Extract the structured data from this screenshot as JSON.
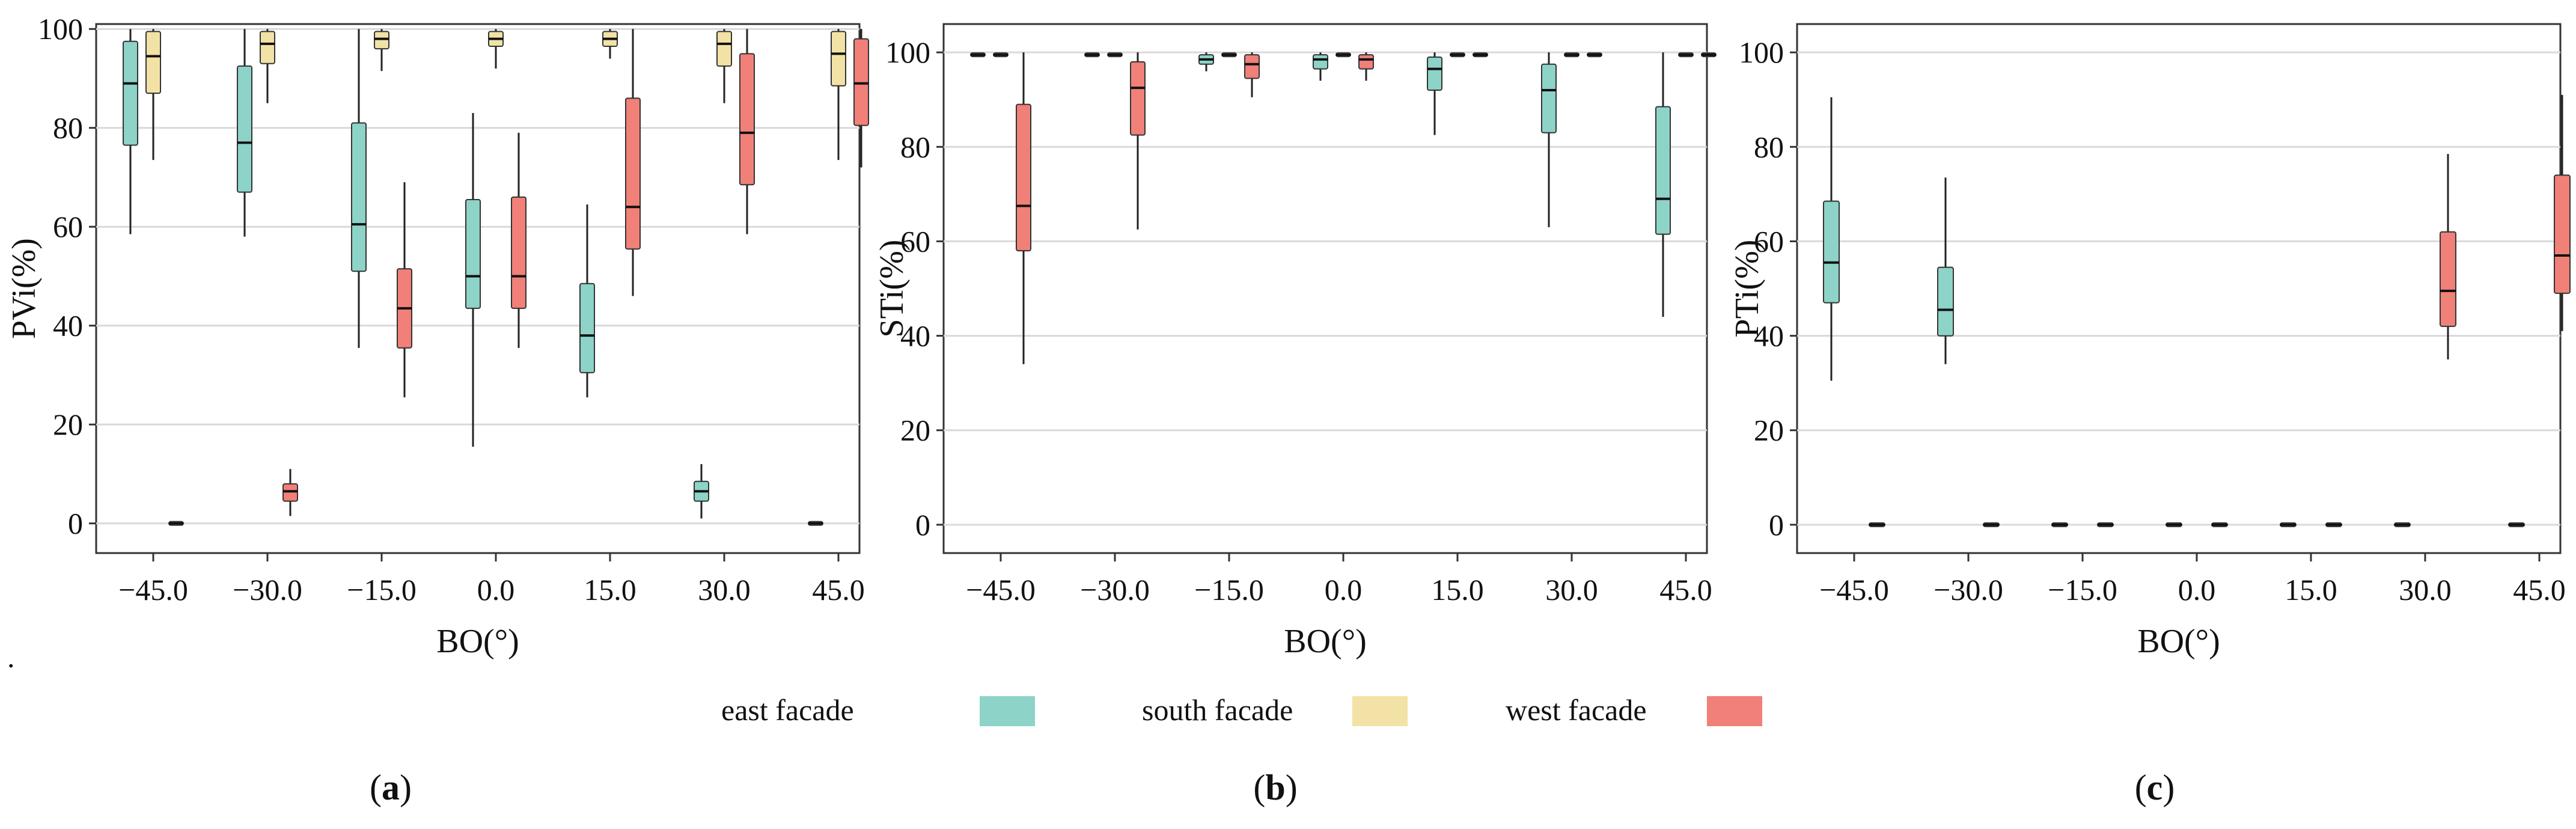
{
  "figure": {
    "legend": [
      {
        "label": "east facade",
        "color": "#8dd3c7"
      },
      {
        "label": "south facade",
        "color": "#f2e2a5"
      },
      {
        "label": "west facade",
        "color": "#f08078"
      }
    ],
    "stray_mark": "."
  },
  "chart_data": [
    {
      "type": "boxplot",
      "panel": "a",
      "panel_label": {
        "open": "(",
        "letter": "a",
        "close": ")"
      },
      "xlabel": "BO(°)",
      "ylabel": "PVi(%)",
      "categories": [
        "-45.0",
        "-30.0",
        "-15.0",
        "0.0",
        "15.0",
        "30.0",
        "45.0"
      ],
      "y_ticks": [
        "0",
        "20",
        "40",
        "60",
        "80",
        "100"
      ],
      "ylim": [
        -6,
        101
      ],
      "grid": "horizontal",
      "series": [
        {
          "name": "east facade",
          "boxes": [
            {
              "category": "-45.0",
              "min": 58.5,
              "q1": 76.5,
              "median": 89.0,
              "q3": 97.5,
              "max": 100
            },
            {
              "category": "-30.0",
              "min": 58.0,
              "q1": 67.0,
              "median": 77.0,
              "q3": 92.5,
              "max": 100
            },
            {
              "category": "-15.0",
              "min": 35.5,
              "q1": 51.0,
              "median": 60.5,
              "q3": 81.0,
              "max": 100
            },
            {
              "category": "0.0",
              "min": 15.5,
              "q1": 43.5,
              "median": 50.0,
              "q3": 65.5,
              "max": 83.0
            },
            {
              "category": "15.0",
              "min": 25.5,
              "q1": 30.5,
              "median": 38.0,
              "q3": 48.5,
              "max": 64.5
            },
            {
              "category": "30.0",
              "min": 1.0,
              "q1": 4.5,
              "median": 6.5,
              "q3": 8.5,
              "max": 12.0
            },
            {
              "category": "45.0",
              "min": 0,
              "q1": 0,
              "median": 0,
              "q3": 0,
              "max": 0
            }
          ]
        },
        {
          "name": "south facade",
          "boxes": [
            {
              "category": "-45.0",
              "min": 73.5,
              "q1": 87.0,
              "median": 94.5,
              "q3": 99.5,
              "max": 100
            },
            {
              "category": "-30.0",
              "min": 85.0,
              "q1": 93.0,
              "median": 97.0,
              "q3": 99.5,
              "max": 100
            },
            {
              "category": "-15.0",
              "min": 91.5,
              "q1": 96.0,
              "median": 98.0,
              "q3": 99.5,
              "max": 100
            },
            {
              "category": "0.0",
              "min": 92.0,
              "q1": 96.5,
              "median": 98.0,
              "q3": 99.5,
              "max": 100
            },
            {
              "category": "15.0",
              "min": 94.0,
              "q1": 96.5,
              "median": 98.0,
              "q3": 99.5,
              "max": 100
            },
            {
              "category": "30.0",
              "min": 85.0,
              "q1": 92.5,
              "median": 97.0,
              "q3": 99.5,
              "max": 100
            },
            {
              "category": "45.0",
              "min": 73.5,
              "q1": 88.5,
              "median": 95.0,
              "q3": 99.5,
              "max": 100
            }
          ]
        },
        {
          "name": "west facade",
          "boxes": [
            {
              "category": "-45.0",
              "min": 0,
              "q1": 0,
              "median": 0,
              "q3": 0,
              "max": 0
            },
            {
              "category": "-30.0",
              "min": 1.5,
              "q1": 4.5,
              "median": 6.5,
              "q3": 8.0,
              "max": 11.0
            },
            {
              "category": "-15.0",
              "min": 25.5,
              "q1": 35.5,
              "median": 43.5,
              "q3": 51.5,
              "max": 69.0
            },
            {
              "category": "0.0",
              "min": 35.5,
              "q1": 43.5,
              "median": 50.0,
              "q3": 66.0,
              "max": 79.0
            },
            {
              "category": "15.0",
              "min": 46.0,
              "q1": 55.5,
              "median": 64.0,
              "q3": 86.0,
              "max": 100
            },
            {
              "category": "30.0",
              "min": 58.5,
              "q1": 68.5,
              "median": 79.0,
              "q3": 95.0,
              "max": 100
            },
            {
              "category": "45.0",
              "min": 72.0,
              "q1": 80.5,
              "median": 89.0,
              "q3": 98.0,
              "max": 100
            }
          ]
        }
      ]
    },
    {
      "type": "boxplot",
      "panel": "b",
      "panel_label": {
        "open": "(",
        "letter": "b",
        "close": ")"
      },
      "xlabel": "BO(°)",
      "ylabel": "STi(%)",
      "categories": [
        "-45.0",
        "-30.0",
        "-15.0",
        "0.0",
        "15.0",
        "30.0",
        "45.0"
      ],
      "y_ticks": [
        "0",
        "20",
        "40",
        "60",
        "80",
        "100"
      ],
      "ylim": [
        -6,
        106
      ],
      "grid": "horizontal",
      "series": [
        {
          "name": "east facade",
          "boxes": [
            {
              "category": "-45.0",
              "min": 99.5,
              "q1": 99.5,
              "median": 99.5,
              "q3": 99.5,
              "max": 99.5
            },
            {
              "category": "-30.0",
              "min": 99.5,
              "q1": 99.5,
              "median": 99.5,
              "q3": 99.5,
              "max": 99.5
            },
            {
              "category": "-15.0",
              "min": 96.0,
              "q1": 97.5,
              "median": 98.5,
              "q3": 99.5,
              "max": 100
            },
            {
              "category": "0.0",
              "min": 94.0,
              "q1": 96.5,
              "median": 98.5,
              "q3": 99.5,
              "max": 100
            },
            {
              "category": "15.0",
              "min": 82.5,
              "q1": 92.0,
              "median": 96.5,
              "q3": 99.0,
              "max": 100
            },
            {
              "category": "30.0",
              "min": 63.0,
              "q1": 83.0,
              "median": 92.0,
              "q3": 97.5,
              "max": 100
            },
            {
              "category": "45.0",
              "min": 44.0,
              "q1": 61.5,
              "median": 69.0,
              "q3": 88.5,
              "max": 100
            }
          ]
        },
        {
          "name": "south facade",
          "boxes": [
            {
              "category": "-45.0",
              "min": 99.5,
              "q1": 99.5,
              "median": 99.5,
              "q3": 99.5,
              "max": 99.5
            },
            {
              "category": "-30.0",
              "min": 99.5,
              "q1": 99.5,
              "median": 99.5,
              "q3": 99.5,
              "max": 99.5
            },
            {
              "category": "-15.0",
              "min": 99.5,
              "q1": 99.5,
              "median": 99.5,
              "q3": 99.5,
              "max": 99.5
            },
            {
              "category": "0.0",
              "min": 99.5,
              "q1": 99.5,
              "median": 99.5,
              "q3": 99.5,
              "max": 99.5
            },
            {
              "category": "15.0",
              "min": 99.5,
              "q1": 99.5,
              "median": 99.5,
              "q3": 99.5,
              "max": 99.5
            },
            {
              "category": "30.0",
              "min": 99.5,
              "q1": 99.5,
              "median": 99.5,
              "q3": 99.5,
              "max": 99.5
            },
            {
              "category": "45.0",
              "min": 99.5,
              "q1": 99.5,
              "median": 99.5,
              "q3": 99.5,
              "max": 99.5
            }
          ]
        },
        {
          "name": "west facade",
          "boxes": [
            {
              "category": "-45.0",
              "min": 34.0,
              "q1": 58.0,
              "median": 67.5,
              "q3": 89.0,
              "max": 100
            },
            {
              "category": "-30.0",
              "min": 62.5,
              "q1": 82.5,
              "median": 92.5,
              "q3": 98.0,
              "max": 100
            },
            {
              "category": "-15.0",
              "min": 90.5,
              "q1": 94.5,
              "median": 97.5,
              "q3": 99.5,
              "max": 100
            },
            {
              "category": "0.0",
              "min": 94.0,
              "q1": 96.5,
              "median": 98.5,
              "q3": 99.5,
              "max": 100
            },
            {
              "category": "15.0",
              "min": 99.5,
              "q1": 99.5,
              "median": 99.5,
              "q3": 99.5,
              "max": 99.5
            },
            {
              "category": "30.0",
              "min": 99.5,
              "q1": 99.5,
              "median": 99.5,
              "q3": 99.5,
              "max": 99.5
            },
            {
              "category": "45.0",
              "min": 99.5,
              "q1": 99.5,
              "median": 99.5,
              "q3": 99.5,
              "max": 99.5
            }
          ]
        }
      ]
    },
    {
      "type": "boxplot",
      "panel": "c",
      "panel_label": {
        "open": "(",
        "letter": "c",
        "close": ")"
      },
      "xlabel": "BO(°)",
      "ylabel": "PTi(%)",
      "categories": [
        "-45.0",
        "-30.0",
        "-15.0",
        "0.0",
        "15.0",
        "30.0",
        "45.0"
      ],
      "y_ticks": [
        "0",
        "20",
        "40",
        "60",
        "80",
        "100"
      ],
      "ylim": [
        -6,
        106
      ],
      "grid": "horizontal",
      "series": [
        {
          "name": "east facade",
          "boxes": [
            {
              "category": "-45.0",
              "min": 30.5,
              "q1": 47.0,
              "median": 55.5,
              "q3": 68.5,
              "max": 90.5
            },
            {
              "category": "-30.0",
              "min": 34.0,
              "q1": 40.0,
              "median": 45.5,
              "q3": 54.5,
              "max": 73.5
            },
            {
              "category": "-15.0",
              "min": 0,
              "q1": 0,
              "median": 0,
              "q3": 0,
              "max": 0
            },
            {
              "category": "0.0",
              "min": 0,
              "q1": 0,
              "median": 0,
              "q3": 0,
              "max": 0
            },
            {
              "category": "15.0",
              "min": 0,
              "q1": 0,
              "median": 0,
              "q3": 0,
              "max": 0
            },
            {
              "category": "30.0",
              "min": 0,
              "q1": 0,
              "median": 0,
              "q3": 0,
              "max": 0
            },
            {
              "category": "45.0",
              "min": 0,
              "q1": 0,
              "median": 0,
              "q3": 0,
              "max": 0
            }
          ]
        },
        {
          "name": "west facade",
          "boxes": [
            {
              "category": "-45.0",
              "min": 0,
              "q1": 0,
              "median": 0,
              "q3": 0,
              "max": 0
            },
            {
              "category": "-30.0",
              "min": 0,
              "q1": 0,
              "median": 0,
              "q3": 0,
              "max": 0
            },
            {
              "category": "-15.0",
              "min": 0,
              "q1": 0,
              "median": 0,
              "q3": 0,
              "max": 0
            },
            {
              "category": "0.0",
              "min": 0,
              "q1": 0,
              "median": 0,
              "q3": 0,
              "max": 0
            },
            {
              "category": "15.0",
              "min": 0,
              "q1": 0,
              "median": 0,
              "q3": 0,
              "max": 0
            },
            {
              "category": "30.0",
              "min": 35.0,
              "q1": 42.0,
              "median": 49.5,
              "q3": 62.0,
              "max": 78.5
            },
            {
              "category": "45.0",
              "min": 41.0,
              "q1": 49.0,
              "median": 57.0,
              "q3": 74.0,
              "max": 91.0
            }
          ]
        }
      ]
    }
  ]
}
